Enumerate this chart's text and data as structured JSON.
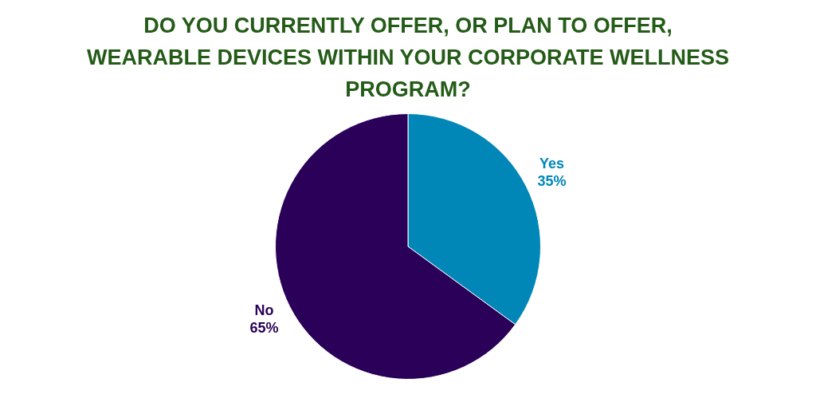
{
  "chart_data": {
    "type": "pie",
    "title": "DO YOU CURRENTLY OFFER, OR PLAN TO OFFER, WEARABLE DEVICES WITHIN YOUR CORPORATE WELLNESS PROGRAM?",
    "categories": [
      "Yes",
      "No"
    ],
    "values": [
      35,
      65
    ],
    "colors": [
      "#0087b8",
      "#2a0058"
    ],
    "value_labels": [
      "35%",
      "65%"
    ],
    "legend": false
  }
}
